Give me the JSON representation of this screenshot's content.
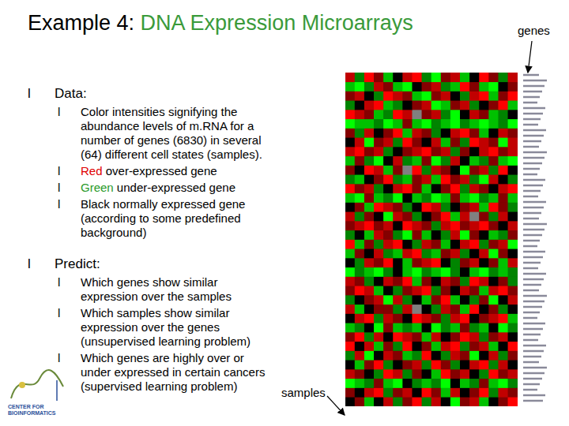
{
  "title_parts": [
    {
      "text": "Example 4: "
    },
    {
      "text": "DNA Expression Microarrays",
      "color": "#3a9a3a"
    }
  ],
  "bullet": "l",
  "sections": [
    {
      "heading": "Data:",
      "items": [
        [
          {
            "text": "Color intensities signifying the abundance levels of m.RNA for a number of genes (6830) in several (64) different cell states (samples)."
          }
        ],
        [
          {
            "text": "Red",
            "color": "#e00000"
          },
          {
            "text": " over-expressed gene"
          }
        ],
        [
          {
            "text": "Green",
            "color": "#2a9a2a"
          },
          {
            "text": " under-expressed gene"
          }
        ],
        [
          {
            "text": "Black normally expressed gene (according to some predefined background)"
          }
        ]
      ]
    },
    {
      "heading": "Predict:",
      "items": [
        [
          {
            "text": "Which genes show similar expression over the samples"
          }
        ],
        [
          {
            "text": "Which samples show similar expression over the genes (unsupervised learning problem)"
          }
        ],
        [
          {
            "text": "Which genes are highly over or under expressed in certain cancers (supervised learning problem)"
          }
        ]
      ]
    }
  ],
  "logo_text": "CENTER FOR BIOINFORMATICS",
  "chart_data": {
    "type": "heatmap",
    "x_label": "samples",
    "y_label": "genes",
    "tick_labels": false,
    "cells": [
      [
        2,
        -1,
        3,
        1,
        -2,
        0,
        2,
        3,
        -1,
        -3,
        1,
        2,
        -2,
        0,
        3,
        1,
        -1,
        2
      ],
      [
        -2,
        -3,
        -1,
        2,
        1,
        -2,
        -3,
        0,
        1,
        2,
        -1,
        -2,
        3,
        1,
        -2,
        -3,
        0,
        1
      ],
      [
        1,
        2,
        0,
        -1,
        3,
        2,
        1,
        -2,
        -3,
        1,
        2,
        0,
        -1,
        2,
        3,
        -2,
        1,
        3
      ],
      [
        -1,
        0,
        2,
        3,
        -2,
        -1,
        0,
        1,
        2,
        -3,
        -2,
        1,
        2,
        -1,
        0,
        1,
        3,
        -2
      ],
      [
        3,
        2,
        1,
        -2,
        -1,
        3,
        2,
        null,
        1,
        2,
        -1,
        -3,
        0,
        2,
        1,
        -2,
        -1,
        0
      ],
      [
        -3,
        -2,
        -2,
        -1,
        -3,
        -2,
        1,
        -2,
        -3,
        -1,
        -2,
        -3,
        -1,
        -2,
        -3,
        -2,
        -1,
        -3
      ],
      [
        1,
        -1,
        2,
        0,
        1,
        3,
        -2,
        2,
        1,
        -1,
        0,
        2,
        3,
        1,
        -2,
        0,
        2,
        1
      ],
      [
        0,
        2,
        -3,
        1,
        2,
        -1,
        3,
        1,
        0,
        2,
        -2,
        1,
        -1,
        3,
        2,
        1,
        -3,
        2
      ],
      [
        2,
        3,
        1,
        2,
        -1,
        0,
        1,
        2,
        3,
        1,
        2,
        -1,
        1,
        0,
        2,
        3,
        1,
        2
      ],
      [
        -2,
        1,
        -1,
        -3,
        0,
        2,
        -1,
        -2,
        1,
        -3,
        -1,
        2,
        0,
        -2,
        -1,
        1,
        -2,
        -3
      ],
      [
        1,
        0,
        3,
        2,
        -2,
        1,
        null,
        3,
        -1,
        2,
        1,
        0,
        -3,
        1,
        2,
        -1,
        3,
        0
      ],
      [
        -1,
        -2,
        0,
        1,
        3,
        -1,
        -2,
        1,
        2,
        -2,
        3,
        1,
        2,
        -1,
        -3,
        2,
        0,
        -1
      ],
      [
        3,
        1,
        2,
        -1,
        0,
        2,
        3,
        1,
        -2,
        0,
        1,
        3,
        -1,
        2,
        1,
        0,
        2,
        3
      ],
      [
        -2,
        -3,
        1,
        -2,
        -1,
        -3,
        0,
        -2,
        -1,
        -3,
        -2,
        1,
        -2,
        -3,
        -1,
        -2,
        1,
        -2
      ],
      [
        0,
        1,
        -2,
        3,
        2,
        1,
        -1,
        0,
        3,
        2,
        -1,
        0,
        1,
        2,
        -2,
        3,
        1,
        -1
      ],
      [
        2,
        -1,
        1,
        0,
        -3,
        2,
        1,
        -1,
        0,
        1,
        3,
        -2,
        2,
        null,
        1,
        -1,
        2,
        0
      ],
      [
        1,
        2,
        3,
        1,
        2,
        0,
        3,
        2,
        1,
        -1,
        2,
        3,
        1,
        2,
        3,
        1,
        0,
        2
      ],
      [
        -1,
        0,
        -2,
        2,
        1,
        -1,
        -3,
        1,
        -2,
        0,
        -1,
        2,
        -3,
        1,
        0,
        -2,
        -1,
        1
      ],
      [
        3,
        -2,
        1,
        -1,
        2,
        3,
        0,
        -1,
        2,
        1,
        -2,
        0,
        2,
        3,
        -1,
        1,
        2,
        -3
      ],
      [
        -2,
        1,
        0,
        2,
        -1,
        -2,
        2,
        3,
        -1,
        -2,
        1,
        2,
        -1,
        0,
        2,
        -3,
        1,
        0
      ],
      [
        0,
        -1,
        2,
        1,
        3,
        0,
        -2,
        1,
        2,
        3,
        0,
        -1,
        1,
        2,
        0,
        1,
        -2,
        2
      ],
      [
        -3,
        -1,
        -2,
        -3,
        -1,
        0,
        -2,
        -3,
        -1,
        -2,
        -3,
        -1,
        0,
        -2,
        -3,
        -1,
        -2,
        -1
      ],
      [
        2,
        1,
        -1,
        0,
        2,
        1,
        3,
        -2,
        1,
        0,
        2,
        1,
        -1,
        3,
        2,
        0,
        1,
        -1
      ],
      [
        1,
        3,
        2,
        -2,
        0,
        -1,
        1,
        2,
        3,
        -1,
        1,
        0,
        2,
        1,
        -2,
        2,
        3,
        1
      ],
      [
        -1,
        0,
        1,
        2,
        -3,
        2,
        -1,
        0,
        -2,
        1,
        3,
        -2,
        0,
        -1,
        1,
        -3,
        0,
        2
      ],
      [
        2,
        -2,
        0,
        1,
        1,
        -1,
        2,
        null,
        0,
        -1,
        2,
        1,
        -2,
        3,
        0,
        1,
        -1,
        0
      ],
      [
        0,
        2,
        3,
        -1,
        2,
        1,
        0,
        3,
        2,
        1,
        -1,
        2,
        3,
        0,
        1,
        2,
        3,
        -2
      ],
      [
        -2,
        -1,
        0,
        -3,
        1,
        -2,
        -1,
        -2,
        0,
        -3,
        -1,
        -2,
        1,
        -1,
        -2,
        0,
        -3,
        -1
      ],
      [
        1,
        3,
        -1,
        2,
        0,
        3,
        2,
        1,
        -2,
        2,
        0,
        1,
        3,
        2,
        -1,
        1,
        2,
        0
      ],
      [
        3,
        0,
        2,
        -2,
        1,
        -1,
        3,
        0,
        1,
        -2,
        2,
        3,
        -1,
        1,
        2,
        -2,
        0,
        3
      ],
      [
        -1,
        2,
        -3,
        0,
        2,
        1,
        -2,
        -1,
        3,
        0,
        -1,
        2,
        1,
        -3,
        0,
        2,
        -1,
        1
      ],
      [
        0,
        -2,
        1,
        3,
        -1,
        0,
        1,
        2,
        -1,
        3,
        1,
        -1,
        0,
        2,
        3,
        -1,
        2,
        0
      ],
      [
        2,
        1,
        0,
        -1,
        3,
        2,
        -1,
        1,
        0,
        -2,
        3,
        1,
        2,
        0,
        -1,
        3,
        1,
        2
      ],
      [
        -3,
        -2,
        -1,
        1,
        -2,
        -3,
        0,
        -1,
        -2,
        -1,
        -3,
        0,
        -2,
        -1,
        1,
        -2,
        -3,
        -1
      ],
      [
        1,
        0,
        2,
        3,
        -1,
        1,
        2,
        0,
        3,
        1,
        -2,
        2,
        0,
        1,
        3,
        -1,
        2,
        1
      ],
      [
        0,
        1,
        -2,
        0,
        2,
        -1,
        1,
        3,
        -1,
        2,
        0,
        -3,
        1,
        2,
        -2,
        0,
        1,
        3
      ]
    ]
  }
}
